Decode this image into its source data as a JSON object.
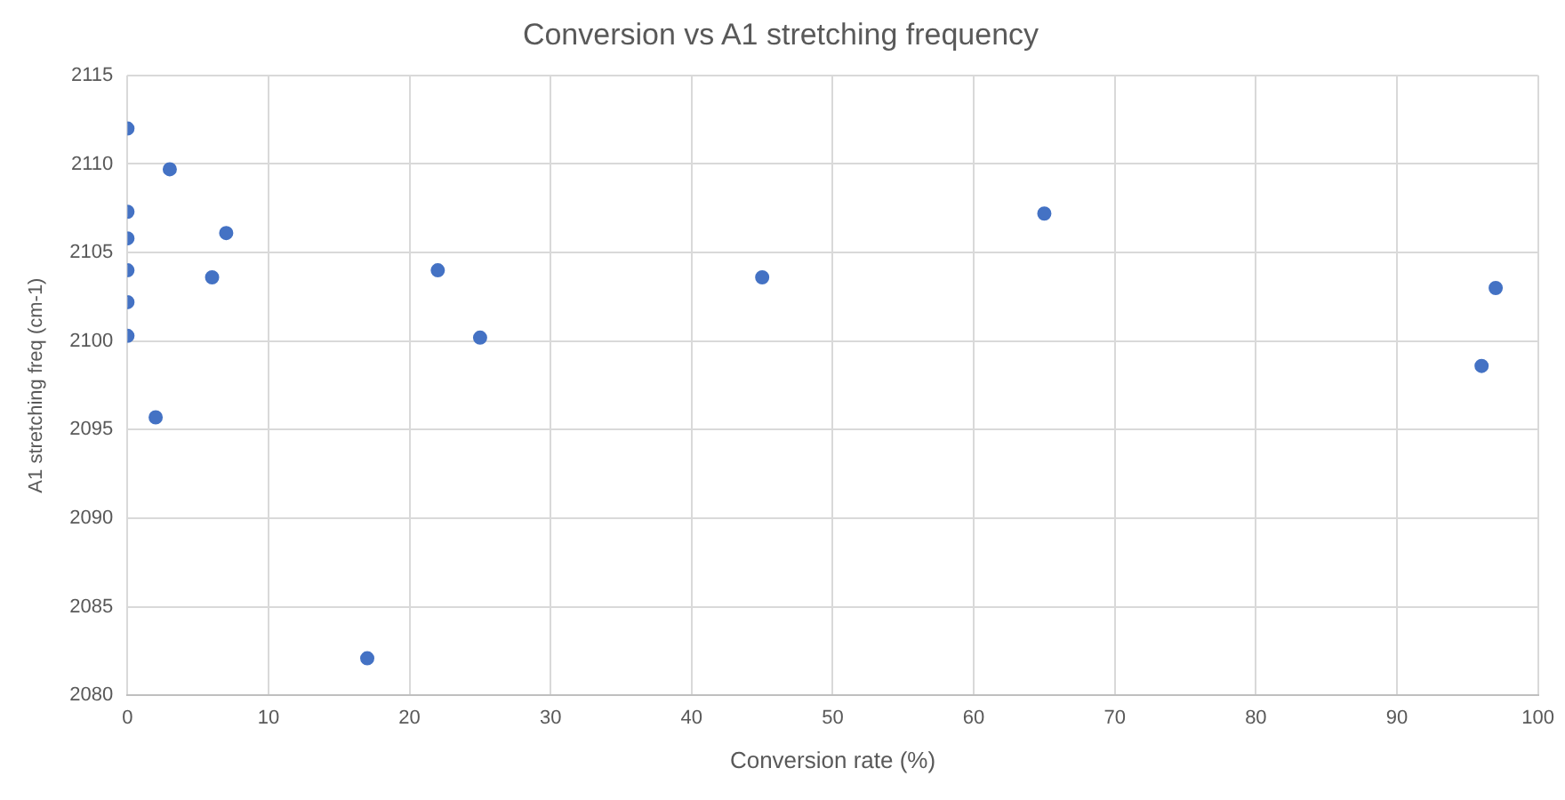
{
  "chart_data": {
    "type": "scatter",
    "title": "Conversion vs A1 stretching frequency",
    "xlabel": "Conversion rate (%)",
    "ylabel": "A1 stretching freq (cm-1)",
    "x": [
      0,
      3,
      0,
      7,
      0,
      0,
      6,
      22,
      0,
      0,
      25,
      2,
      17,
      45,
      65,
      96,
      97
    ],
    "values": [
      2112.0,
      2109.7,
      2107.3,
      2106.1,
      2105.8,
      2104.0,
      2103.6,
      2104.0,
      2102.2,
      2100.3,
      2100.2,
      2095.7,
      2082.1,
      2103.6,
      2107.2,
      2098.6,
      2103.0
    ],
    "color": "#4472c4",
    "marker": "circle",
    "xlim": [
      0,
      100
    ],
    "xticks": [
      0,
      10,
      20,
      30,
      40,
      50,
      60,
      70,
      80,
      90,
      100
    ],
    "ylim": [
      2080,
      2115
    ],
    "yticks": [
      2080,
      2085,
      2090,
      2095,
      2100,
      2105,
      2110,
      2115
    ],
    "grid": true,
    "legend": false
  }
}
